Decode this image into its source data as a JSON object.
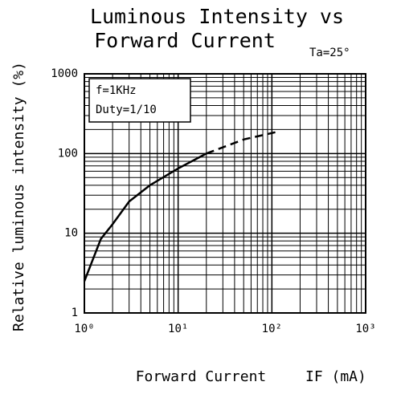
{
  "chart_data": {
    "type": "line",
    "title": [
      "Luminous Intensity vs",
      "Forward Current"
    ],
    "annotation": "Ta=25°",
    "xlabel": "Forward Current",
    "xlabel_unit": "IF (mA)",
    "ylabel": "Relative luminous intensity (%)",
    "legend_text": [
      "f=1KHz",
      "Duty=1/10"
    ],
    "x": [
      1,
      1.5,
      2,
      3,
      5,
      10,
      20,
      50,
      120
    ],
    "series": [
      {
        "color": "#000000",
        "style": "solid",
        "values": [
          2.5,
          8.5,
          13,
          25,
          40,
          65,
          100,
          null,
          null
        ]
      },
      {
        "color": "#000000",
        "style": "dashed",
        "values": [
          null,
          null,
          null,
          null,
          null,
          null,
          100,
          150,
          190
        ]
      }
    ],
    "xscale": "log",
    "yscale": "log",
    "xlim": [
      1,
      1000
    ],
    "ylim": [
      1,
      1000
    ],
    "xticks": [
      {
        "value": 1,
        "label": "10⁰"
      },
      {
        "value": 10,
        "label": "10¹"
      },
      {
        "value": 100,
        "label": "10²"
      },
      {
        "value": 1000,
        "label": "10³"
      }
    ],
    "yticks": [
      1,
      10,
      100,
      1000
    ],
    "grid": true
  }
}
